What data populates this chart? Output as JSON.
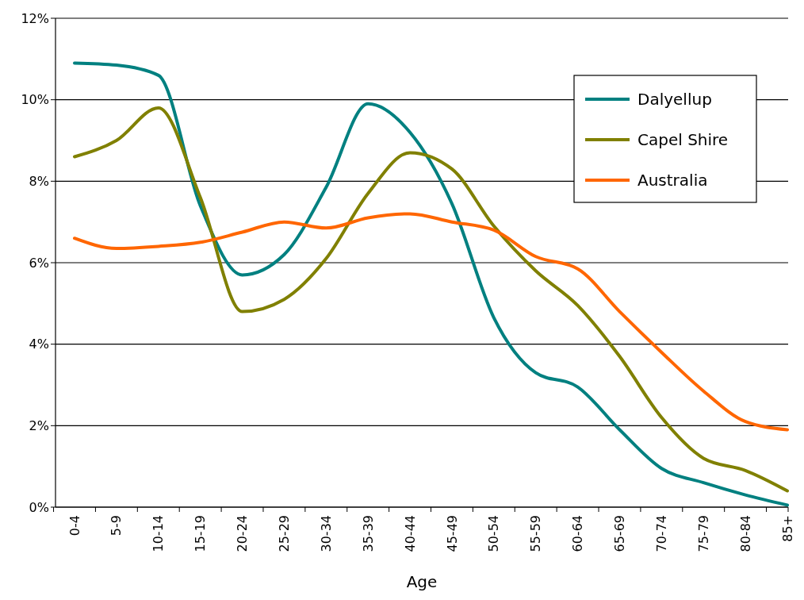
{
  "chart_data": {
    "type": "line",
    "xlabel": "Age",
    "categories": [
      "0-4",
      "5-9",
      "10-14",
      "15-19",
      "20-24",
      "25-29",
      "30-34",
      "35-39",
      "40-44",
      "45-49",
      "50-54",
      "55-59",
      "60-64",
      "65-69",
      "70-74",
      "75-79",
      "80-84",
      "85+"
    ],
    "series": [
      {
        "name": "Dalyellup",
        "color": "#008080",
        "values": [
          10.9,
          10.85,
          10.6,
          7.4,
          5.7,
          6.2,
          7.85,
          9.9,
          9.2,
          7.45,
          4.65,
          3.3,
          2.95,
          1.9,
          0.95,
          0.6,
          0.3,
          0.05
        ]
      },
      {
        "name": "Capel Shire",
        "color": "#808000",
        "values": [
          8.6,
          9.0,
          9.8,
          7.6,
          4.8,
          5.1,
          6.1,
          7.7,
          8.7,
          8.3,
          6.9,
          5.8,
          4.95,
          3.7,
          2.2,
          1.2,
          0.9,
          0.4
        ]
      },
      {
        "name": "Australia",
        "color": "#ff6600",
        "values": [
          6.6,
          6.35,
          6.4,
          6.5,
          6.75,
          7.0,
          6.85,
          7.1,
          7.2,
          7.0,
          6.8,
          6.15,
          5.85,
          4.8,
          3.8,
          2.85,
          2.1,
          1.9
        ]
      }
    ],
    "ylim": [
      0,
      12
    ],
    "yticks": [
      {
        "value": 0,
        "label": "0%"
      },
      {
        "value": 2,
        "label": "2%"
      },
      {
        "value": 4,
        "label": "4%"
      },
      {
        "value": 6,
        "label": "6%"
      },
      {
        "value": 8,
        "label": "8%"
      },
      {
        "value": 10,
        "label": "10%"
      },
      {
        "value": 12,
        "label": "12%"
      }
    ],
    "grid": "y",
    "legend": "top right",
    "marker": "none",
    "line_style": "solid"
  }
}
